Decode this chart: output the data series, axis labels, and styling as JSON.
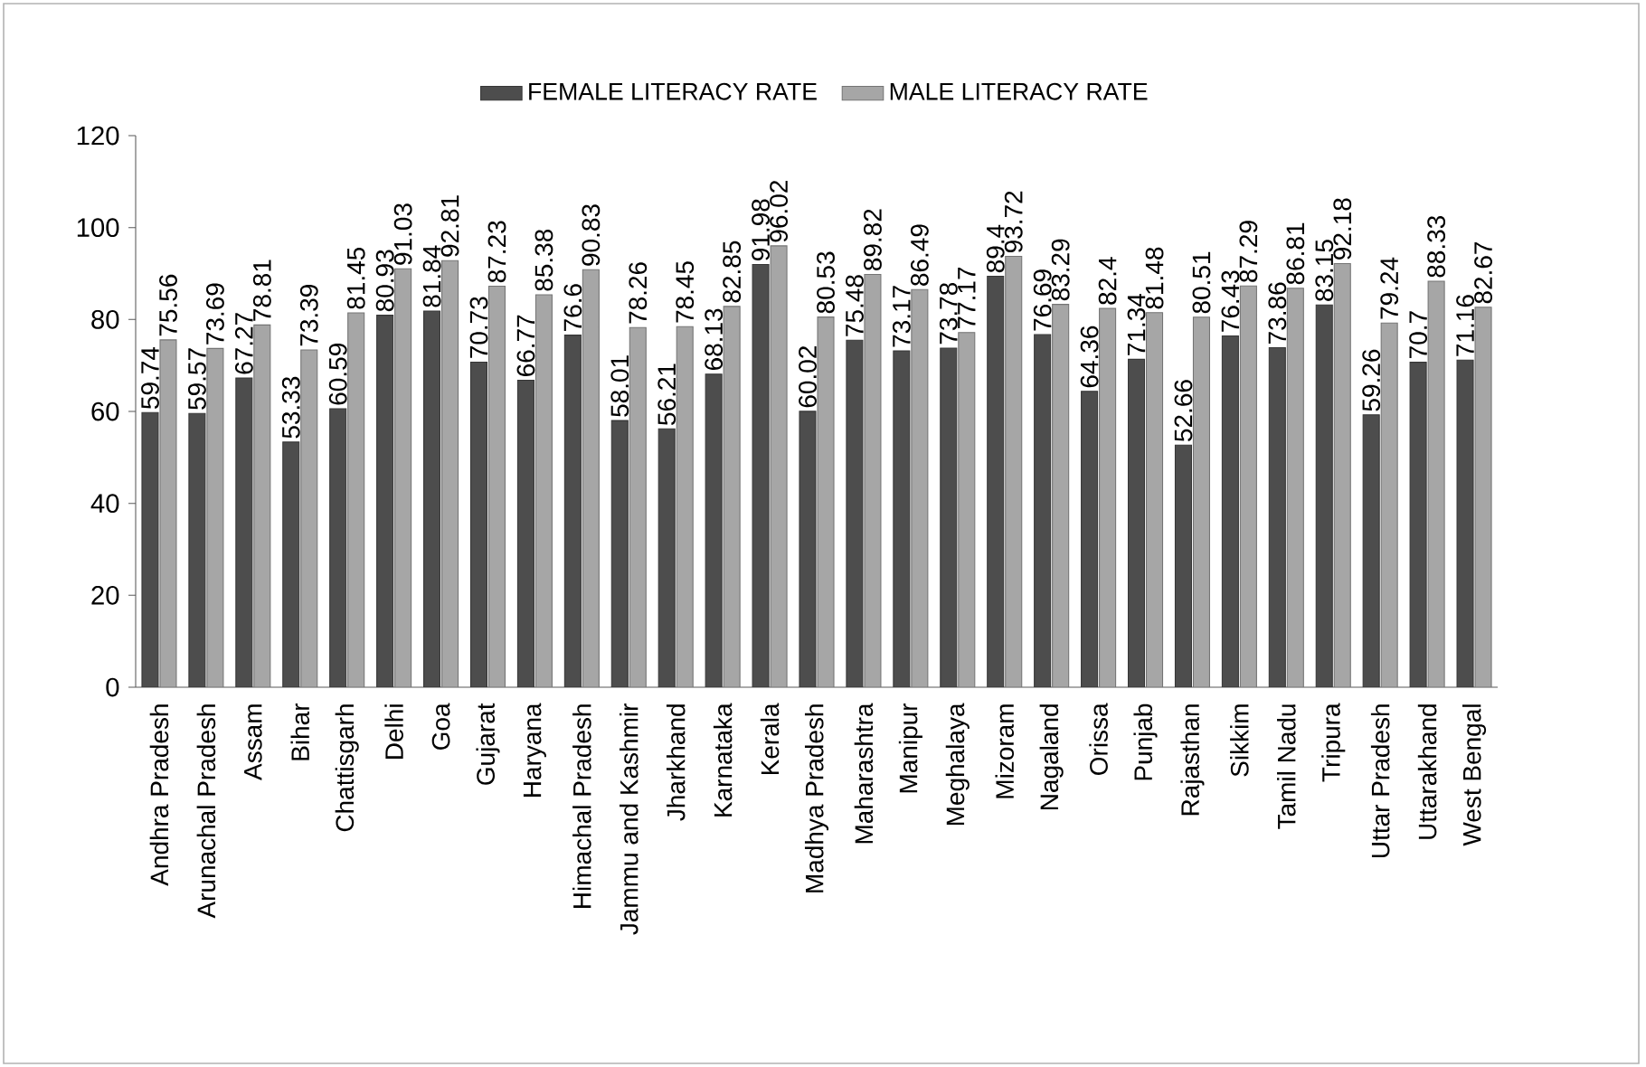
{
  "chart_data": {
    "type": "bar",
    "categories": [
      "Andhra Pradesh",
      "Arunachal Pradesh",
      "Assam",
      "Bihar",
      "Chattisgarh",
      "Delhi",
      "Goa",
      "Gujarat",
      "Haryana",
      "Himachal Pradesh",
      "Jammu and Kashmir",
      "Jharkhand",
      "Karnataka",
      "Kerala",
      "Madhya Pradesh",
      "Maharashtra",
      "Manipur",
      "Meghalaya",
      "Mizoram",
      "Nagaland",
      "Orissa",
      "Punjab",
      "Rajasthan",
      "Sikkim",
      "Tamil Nadu",
      "Tripura",
      "Uttar Pradesh",
      "Uttarakhand",
      "West Bengal"
    ],
    "series": [
      {
        "name": "FEMALE LITERACY RATE",
        "color": "#4d4d4d",
        "values": [
          59.74,
          59.57,
          67.27,
          53.33,
          60.59,
          80.93,
          81.84,
          70.73,
          66.77,
          76.6,
          58.01,
          56.21,
          68.13,
          91.98,
          60.02,
          75.48,
          73.17,
          73.78,
          89.4,
          76.69,
          64.36,
          71.34,
          52.66,
          76.43,
          73.86,
          83.15,
          59.26,
          70.7,
          71.16
        ]
      },
      {
        "name": "MALE LITERACY RATE",
        "color": "#a6a6a6",
        "values": [
          75.56,
          73.69,
          78.81,
          73.39,
          81.45,
          91.03,
          92.81,
          87.23,
          85.38,
          90.83,
          78.26,
          78.45,
          82.85,
          96.02,
          80.53,
          89.82,
          86.49,
          77.17,
          93.72,
          83.29,
          82.4,
          81.48,
          80.51,
          87.29,
          86.81,
          92.18,
          79.24,
          88.33,
          82.67
        ]
      }
    ],
    "ylim": [
      0,
      120
    ],
    "yticks": [
      0,
      20,
      40,
      60,
      80,
      100,
      120
    ],
    "data_labels": true,
    "legend": "top",
    "grid": false
  }
}
